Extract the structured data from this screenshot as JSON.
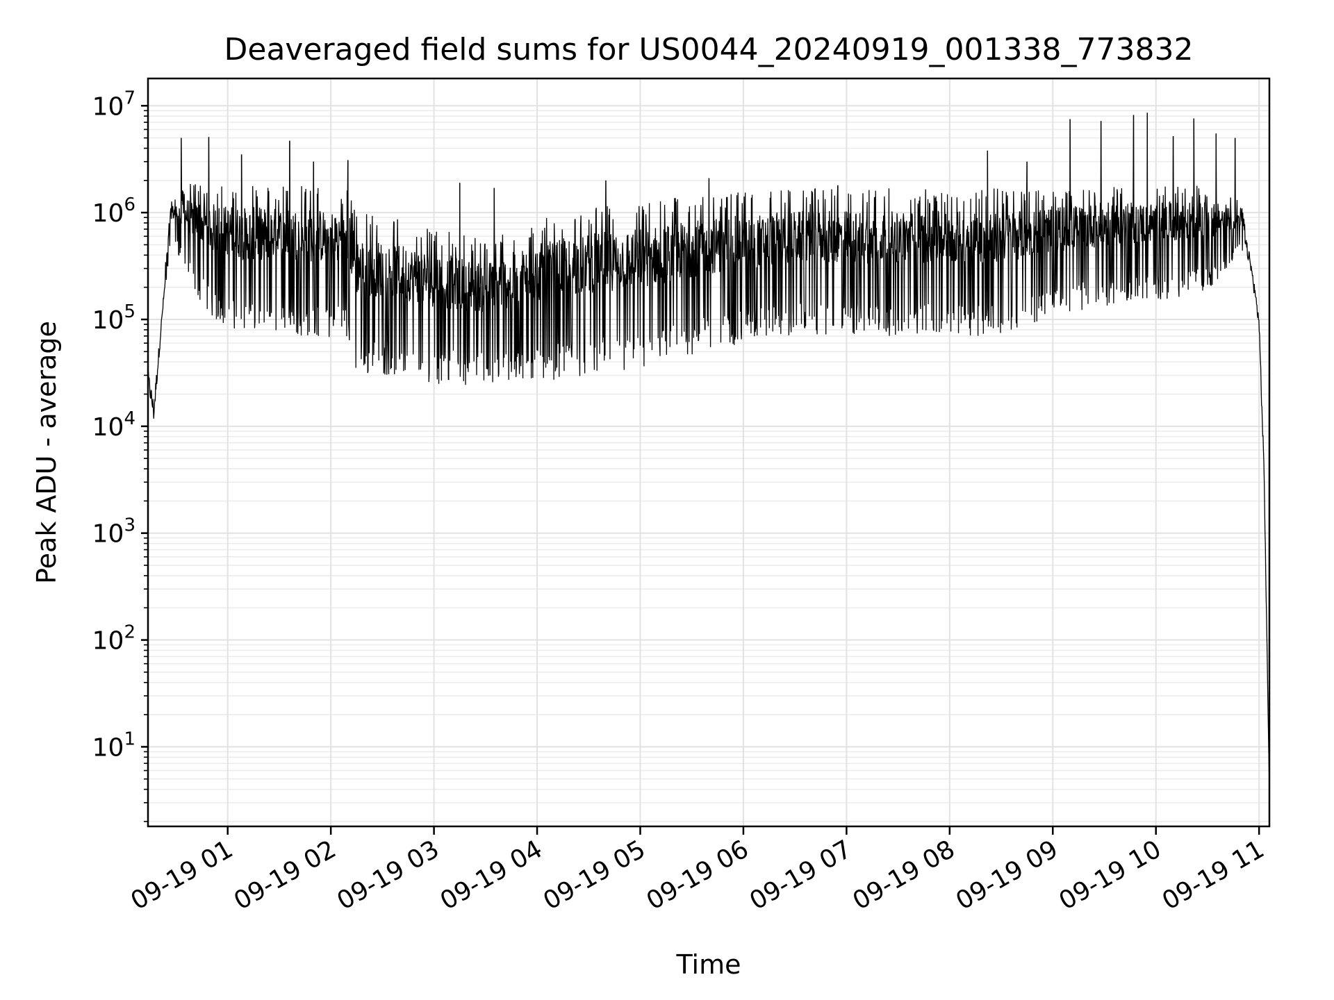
{
  "chart_data": {
    "type": "line",
    "title": "Deaveraged field sums for US0044_20240919_001338_773832",
    "xlabel": "Time",
    "ylabel": "Peak ADU - average",
    "x_axis": {
      "kind": "time",
      "start": "2024-09-19 00:13:38",
      "end": "2024-09-19 11:06:00",
      "ticks": [
        "09-19 01",
        "09-19 02",
        "09-19 03",
        "09-19 04",
        "09-19 05",
        "09-19 06",
        "09-19 07",
        "09-19 08",
        "09-19 09",
        "09-19 10",
        "09-19 11"
      ],
      "tick_times": [
        "2024-09-19 01:00",
        "2024-09-19 02:00",
        "2024-09-19 03:00",
        "2024-09-19 04:00",
        "2024-09-19 05:00",
        "2024-09-19 06:00",
        "2024-09-19 07:00",
        "2024-09-19 08:00",
        "2024-09-19 09:00",
        "2024-09-19 10:00",
        "2024-09-19 11:00"
      ]
    },
    "y_axis": {
      "scale": "log",
      "ylim": [
        1.8,
        18000000
      ],
      "ticks": [
        {
          "base": "10",
          "exp": "1",
          "value": 10
        },
        {
          "base": "10",
          "exp": "2",
          "value": 100
        },
        {
          "base": "10",
          "exp": "3",
          "value": 1000
        },
        {
          "base": "10",
          "exp": "4",
          "value": 10000
        },
        {
          "base": "10",
          "exp": "5",
          "value": 100000
        },
        {
          "base": "10",
          "exp": "6",
          "value": 1000000
        },
        {
          "base": "10",
          "exp": "7",
          "value": 10000000
        }
      ]
    },
    "grid": true,
    "series": [
      {
        "color": "#000000",
        "envelope": [
          {
            "t": "2024-09-19 00:13:38",
            "lo": 18000,
            "hi": 45000
          },
          {
            "t": "2024-09-19 00:17:00",
            "lo": 7500,
            "hi": 25000
          },
          {
            "t": "2024-09-19 00:22:00",
            "lo": 90000,
            "hi": 150000
          },
          {
            "t": "2024-09-19 00:27:00",
            "lo": 600000,
            "hi": 1200000
          },
          {
            "t": "2024-09-19 00:36:00",
            "lo": 250000,
            "hi": 1500000
          },
          {
            "t": "2024-09-19 00:50:00",
            "lo": 100000,
            "hi": 1400000
          },
          {
            "t": "2024-09-19 01:10:00",
            "lo": 75000,
            "hi": 1300000
          },
          {
            "t": "2024-09-19 01:40:00",
            "lo": 70000,
            "hi": 1300000
          },
          {
            "t": "2024-09-19 02:10:00",
            "lo": 65000,
            "hi": 1200000
          },
          {
            "t": "2024-09-19 02:15:00",
            "lo": 30000,
            "hi": 700000
          },
          {
            "t": "2024-09-19 02:40:00",
            "lo": 30000,
            "hi": 600000
          },
          {
            "t": "2024-09-19 03:00:00",
            "lo": 25000,
            "hi": 500000
          },
          {
            "t": "2024-09-19 03:30:00",
            "lo": 24000,
            "hi": 400000
          },
          {
            "t": "2024-09-19 04:00:00",
            "lo": 26000,
            "hi": 600000
          },
          {
            "t": "2024-09-19 04:30:00",
            "lo": 30000,
            "hi": 750000
          },
          {
            "t": "2024-09-19 05:00:00",
            "lo": 32000,
            "hi": 850000
          },
          {
            "t": "2024-09-19 05:30:00",
            "lo": 45000,
            "hi": 1000000
          },
          {
            "t": "2024-09-19 06:00:00",
            "lo": 60000,
            "hi": 1100000
          },
          {
            "t": "2024-09-19 06:30:00",
            "lo": 70000,
            "hi": 1200000
          },
          {
            "t": "2024-09-19 07:30:00",
            "lo": 70000,
            "hi": 1200000
          },
          {
            "t": "2024-09-19 08:30:00",
            "lo": 70000,
            "hi": 1200000
          },
          {
            "t": "2024-09-19 09:00:00",
            "lo": 110000,
            "hi": 1300000
          },
          {
            "t": "2024-09-19 09:30:00",
            "lo": 130000,
            "hi": 1400000
          },
          {
            "t": "2024-09-19 10:00:00",
            "lo": 150000,
            "hi": 1400000
          },
          {
            "t": "2024-09-19 10:30:00",
            "lo": 180000,
            "hi": 1400000
          },
          {
            "t": "2024-09-19 10:50:00",
            "lo": 400000,
            "hi": 1200000
          },
          {
            "t": "2024-09-19 10:55:00",
            "lo": 250000,
            "hi": 450000
          },
          {
            "t": "2024-09-19 11:00:00",
            "lo": 60000,
            "hi": 150000
          },
          {
            "t": "2024-09-19 11:03:00",
            "lo": 2000,
            "hi": 5000
          },
          {
            "t": "2024-09-19 11:06:00",
            "lo": 3.8,
            "hi": 4
          }
        ],
        "spikes": [
          {
            "t": "2024-09-19 00:33:00",
            "value": 5000000
          },
          {
            "t": "2024-09-19 00:49:00",
            "value": 5100000
          },
          {
            "t": "2024-09-19 01:08:00",
            "value": 3500000
          },
          {
            "t": "2024-09-19 01:36:00",
            "value": 4700000
          },
          {
            "t": "2024-09-19 01:50:00",
            "value": 3000000
          },
          {
            "t": "2024-09-19 02:10:00",
            "value": 3100000
          },
          {
            "t": "2024-09-19 03:15:00",
            "value": 1900000
          },
          {
            "t": "2024-09-19 03:35:00",
            "value": 1700000
          },
          {
            "t": "2024-09-19 04:40:00",
            "value": 2000000
          },
          {
            "t": "2024-09-19 05:40:00",
            "value": 2100000
          },
          {
            "t": "2024-09-19 06:55:00",
            "value": 1800000
          },
          {
            "t": "2024-09-19 08:22:00",
            "value": 3800000
          },
          {
            "t": "2024-09-19 08:45:00",
            "value": 3000000
          },
          {
            "t": "2024-09-19 09:10:00",
            "value": 7500000
          },
          {
            "t": "2024-09-19 09:28:00",
            "value": 7200000
          },
          {
            "t": "2024-09-19 09:47:00",
            "value": 8200000
          },
          {
            "t": "2024-09-19 09:55:00",
            "value": 8600000
          },
          {
            "t": "2024-09-19 10:10:00",
            "value": 5200000
          },
          {
            "t": "2024-09-19 10:22:00",
            "value": 7600000
          },
          {
            "t": "2024-09-19 10:35:00",
            "value": 5500000
          },
          {
            "t": "2024-09-19 10:46:00",
            "value": 5000000
          }
        ]
      }
    ]
  }
}
